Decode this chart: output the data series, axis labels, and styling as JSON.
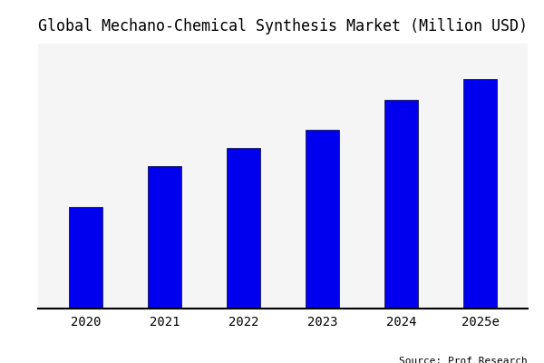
{
  "title": "Global Mechano-Chemical Synthesis Market (Million USD)",
  "categories": [
    "2020",
    "2021",
    "2022",
    "2023",
    "2024",
    "2025e"
  ],
  "values": [
    100,
    140,
    158,
    175,
    205,
    225
  ],
  "bar_color": "#0000EE",
  "background_color": "#ffffff",
  "plot_bg_color": "#f5f5f5",
  "source_text": "Source: Prof Research",
  "title_fontsize": 12,
  "tick_fontsize": 10,
  "source_fontsize": 8,
  "bar_width": 0.42,
  "ylim": [
    0,
    260
  ]
}
